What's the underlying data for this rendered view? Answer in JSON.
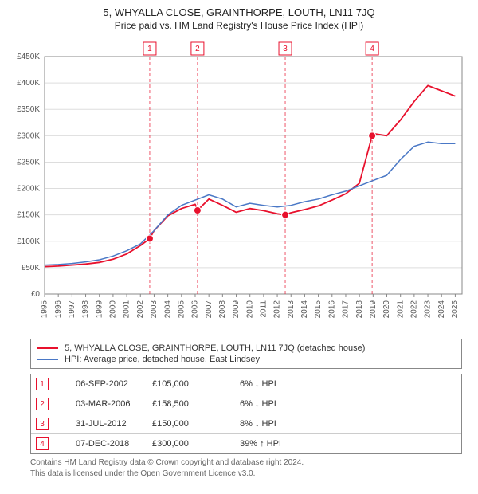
{
  "title_line1": "5, WHYALLA CLOSE, GRAINTHORPE, LOUTH, LN11 7JQ",
  "title_line2": "Price paid vs. HM Land Registry's House Price Index (HPI)",
  "chart": {
    "type": "line",
    "background_color": "#ffffff",
    "plot_background_color": "#ffffff",
    "grid_color": "#dddddd",
    "axis_color": "#888888",
    "xlim": [
      1995,
      2025.5
    ],
    "ylim": [
      0,
      450000
    ],
    "xtick_step": 1,
    "ytick_step": 50000,
    "xticks": [
      1995,
      1996,
      1997,
      1998,
      1999,
      2000,
      2001,
      2002,
      2003,
      2004,
      2005,
      2006,
      2007,
      2008,
      2009,
      2010,
      2011,
      2012,
      2013,
      2014,
      2015,
      2016,
      2017,
      2018,
      2019,
      2020,
      2021,
      2022,
      2023,
      2024,
      2025
    ],
    "yticks": [
      0,
      50000,
      100000,
      150000,
      200000,
      250000,
      300000,
      350000,
      400000,
      450000
    ],
    "ytick_labels": [
      "£0",
      "£50K",
      "£100K",
      "£150K",
      "£200K",
      "£250K",
      "£300K",
      "£350K",
      "£400K",
      "£450K"
    ],
    "x_label_fontsize": 10,
    "y_label_fontsize": 10,
    "x_label_rotation": -90,
    "series": [
      {
        "name": "property",
        "label": "5, WHYALLA CLOSE, GRAINTHORPE, LOUTH, LN11 7JQ (detached house)",
        "color": "#e8112d",
        "line_width": 1.8,
        "data": [
          [
            1995,
            52000
          ],
          [
            1996,
            53000
          ],
          [
            1997,
            55000
          ],
          [
            1998,
            57000
          ],
          [
            1999,
            60000
          ],
          [
            2000,
            66000
          ],
          [
            2001,
            76000
          ],
          [
            2002,
            92000
          ],
          [
            2002.68,
            105000
          ],
          [
            2003,
            120000
          ],
          [
            2004,
            148000
          ],
          [
            2005,
            162000
          ],
          [
            2006,
            170000
          ],
          [
            2006.17,
            158500
          ],
          [
            2007,
            180000
          ],
          [
            2008,
            168000
          ],
          [
            2009,
            155000
          ],
          [
            2010,
            162000
          ],
          [
            2011,
            158000
          ],
          [
            2012,
            152000
          ],
          [
            2012.58,
            150000
          ],
          [
            2013,
            154000
          ],
          [
            2014,
            160000
          ],
          [
            2015,
            167000
          ],
          [
            2016,
            178000
          ],
          [
            2017,
            190000
          ],
          [
            2018,
            210000
          ],
          [
            2018.93,
            300000
          ],
          [
            2019,
            304000
          ],
          [
            2020,
            300000
          ],
          [
            2021,
            330000
          ],
          [
            2022,
            365000
          ],
          [
            2023,
            395000
          ],
          [
            2024,
            385000
          ],
          [
            2025,
            375000
          ]
        ]
      },
      {
        "name": "hpi",
        "label": "HPI: Average price, detached house, East Lindsey",
        "color": "#4a78c6",
        "line_width": 1.5,
        "data": [
          [
            1995,
            55000
          ],
          [
            1996,
            56000
          ],
          [
            1997,
            58000
          ],
          [
            1998,
            61000
          ],
          [
            1999,
            65000
          ],
          [
            2000,
            72000
          ],
          [
            2001,
            82000
          ],
          [
            2002,
            95000
          ],
          [
            2003,
            120000
          ],
          [
            2004,
            150000
          ],
          [
            2005,
            168000
          ],
          [
            2006,
            178000
          ],
          [
            2007,
            188000
          ],
          [
            2008,
            180000
          ],
          [
            2009,
            165000
          ],
          [
            2010,
            172000
          ],
          [
            2011,
            168000
          ],
          [
            2012,
            165000
          ],
          [
            2013,
            168000
          ],
          [
            2014,
            175000
          ],
          [
            2015,
            180000
          ],
          [
            2016,
            188000
          ],
          [
            2017,
            195000
          ],
          [
            2018,
            205000
          ],
          [
            2019,
            215000
          ],
          [
            2020,
            225000
          ],
          [
            2021,
            255000
          ],
          [
            2022,
            280000
          ],
          [
            2023,
            288000
          ],
          [
            2024,
            285000
          ],
          [
            2025,
            285000
          ]
        ]
      }
    ],
    "markers": [
      {
        "n": "1",
        "x": 2002.68,
        "y": 105000,
        "chip_y_top": true
      },
      {
        "n": "2",
        "x": 2006.17,
        "y": 158500,
        "chip_y_top": true
      },
      {
        "n": "3",
        "x": 2012.58,
        "y": 150000,
        "chip_y_top": true
      },
      {
        "n": "4",
        "x": 2018.93,
        "y": 300000,
        "chip_y_top": true
      }
    ],
    "marker_style": {
      "point_color": "#e8112d",
      "point_radius": 4.5,
      "vline_color": "#e8112d",
      "vline_dash": "4,3",
      "vline_width": 1,
      "chip_border_color": "#e8112d",
      "chip_fill": "#ffffff",
      "chip_text_color": "#e8112d",
      "chip_size": 16
    }
  },
  "legend": {
    "rows": [
      {
        "color": "#e8112d",
        "text": "5, WHYALLA CLOSE, GRAINTHORPE, LOUTH, LN11 7JQ (detached house)"
      },
      {
        "color": "#4a78c6",
        "text": "HPI: Average price, detached house, East Lindsey"
      }
    ]
  },
  "table": {
    "rows": [
      {
        "n": "1",
        "date": "06-SEP-2002",
        "price": "£105,000",
        "diff": "6% ↓ HPI"
      },
      {
        "n": "2",
        "date": "03-MAR-2006",
        "price": "£158,500",
        "diff": "6% ↓ HPI"
      },
      {
        "n": "3",
        "date": "31-JUL-2012",
        "price": "£150,000",
        "diff": "8% ↓ HPI"
      },
      {
        "n": "4",
        "date": "07-DEC-2018",
        "price": "£300,000",
        "diff": "39% ↑ HPI"
      }
    ],
    "badge_border_color": "#e8112d",
    "badge_text_color": "#e8112d"
  },
  "footer_line1": "Contains HM Land Registry data © Crown copyright and database right 2024.",
  "footer_line2": "This data is licensed under the Open Government Licence v3.0."
}
